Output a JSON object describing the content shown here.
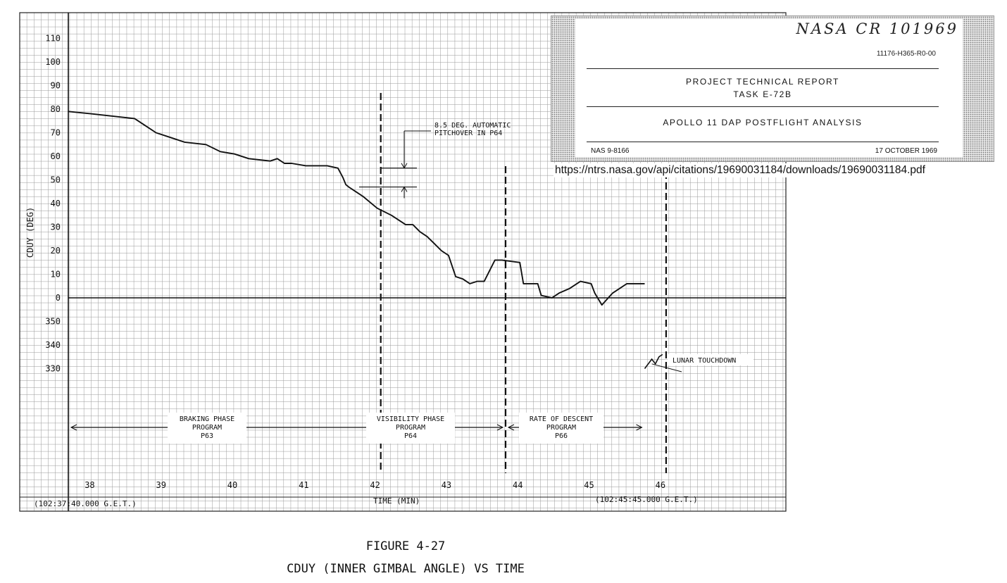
{
  "chart_data": {
    "type": "line",
    "ylabel": "CDUY (DEG)",
    "xlabel": "TIME (MIN)",
    "x_start_label": "(102:37:40.000 G.E.T.)",
    "x_end_label": "(102:45:45.000 G.E.T.)",
    "x_ticks": [
      "38",
      "39",
      "40",
      "41",
      "42",
      "43",
      "44",
      "45",
      "46"
    ],
    "y_ticks": [
      "110",
      "100",
      "90",
      "80",
      "70",
      "60",
      "50",
      "40",
      "30",
      "20",
      "10",
      "0",
      "350",
      "340",
      "330"
    ],
    "xlim": [
      37.67,
      45.75
    ],
    "ylim": [
      -40,
      118
    ],
    "grid": true,
    "series": [
      {
        "x": [
          37.67,
          38.0,
          38.3,
          38.6,
          38.75,
          38.9,
          39.1,
          39.3,
          39.6,
          39.8,
          40.0,
          40.2,
          40.5,
          40.6,
          40.7,
          40.8,
          41.0,
          41.3,
          41.45,
          41.52,
          41.56,
          41.6,
          41.8,
          42.0,
          42.2,
          42.4,
          42.5,
          42.6,
          42.7,
          42.8,
          42.9,
          43.0,
          43.1,
          43.2,
          43.3,
          43.4,
          43.5,
          43.65,
          43.75,
          44.0,
          44.05,
          44.15,
          44.25,
          44.3,
          44.45,
          44.55,
          44.7,
          44.85,
          45.0,
          45.05,
          45.15,
          45.3,
          45.5,
          45.75
        ],
        "y": [
          79,
          78,
          77,
          76,
          73,
          70,
          68,
          66,
          65,
          62,
          61,
          59,
          58,
          59,
          57,
          57,
          56,
          56,
          55,
          51,
          48,
          47,
          43,
          38,
          35,
          31,
          31,
          28,
          26,
          23,
          20,
          18,
          9,
          8,
          6,
          7,
          7,
          16,
          16,
          15,
          6,
          6,
          6,
          1,
          0,
          2,
          4,
          7,
          6,
          2,
          -3,
          2,
          6,
          6
        ]
      }
    ],
    "touchdown_trace": {
      "x": [
        45.75,
        45.85,
        45.9,
        45.95,
        46.0
      ],
      "y": [
        -30,
        -26,
        -28,
        -25,
        -24
      ]
    },
    "event_lines_x": [
      42.05,
      43.8,
      46.05
    ],
    "pitchover_y": [
      55,
      47
    ],
    "pitchover_label": [
      "8.5 DEG. AUTOMATIC",
      "PITCHOVER IN P64"
    ],
    "phases": [
      {
        "lines": [
          "BRAKING PHASE",
          "PROGRAM",
          "P63"
        ],
        "x0": 37.67,
        "x1": 42.05
      },
      {
        "lines": [
          "VISIBILITY PHASE",
          "PROGRAM",
          "P64"
        ],
        "x0": 42.05,
        "x1": 43.8
      },
      {
        "lines": [
          "RATE OF DESCENT",
          "PROGRAM",
          "P66"
        ],
        "x0": 43.8,
        "x1": 45.75
      }
    ],
    "touchdown_label": "LUNAR TOUCHDOWN"
  },
  "caption": {
    "figure": "FIGURE 4-27",
    "title": "CDUY (INNER GIMBAL ANGLE) VS TIME"
  },
  "report": {
    "handwritten": "NASA CR 101969",
    "doc_number": "11176-H365-R0-00",
    "header_line1": "PROJECT TECHNICAL REPORT",
    "header_line2": "TASK E-72B",
    "title": "APOLLO 11 DAP POSTFLIGHT ANALYSIS",
    "contract": "NAS 9-8166",
    "date": "17 OCTOBER 1969"
  },
  "source_url": "https://ntrs.nasa.gov/api/citations/19690031184/downloads/19690031184.pdf"
}
